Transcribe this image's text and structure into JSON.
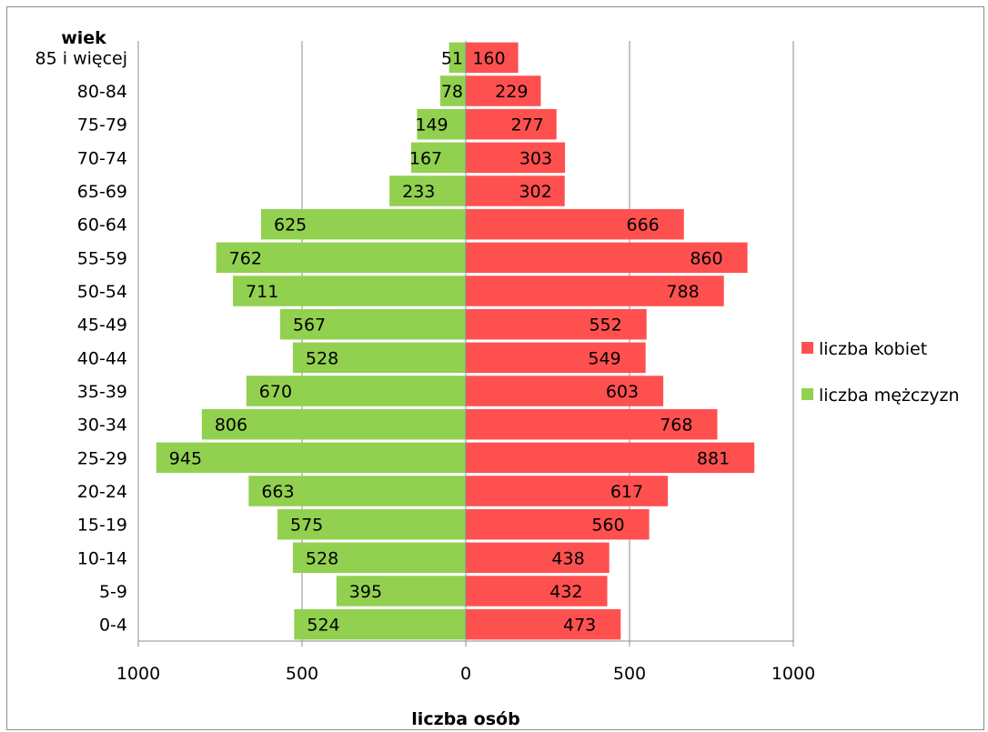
{
  "chart_data": {
    "type": "bar",
    "orientation": "horizontal",
    "subtype": "population-pyramid",
    "title": "",
    "ylabel": "wiek",
    "xlabel": "liczba osób",
    "categories": [
      "0-4",
      "5-9",
      "10-14",
      "15-19",
      "20-24",
      "25-29",
      "30-34",
      "35-39",
      "40-44",
      "45-49",
      "50-54",
      "55-59",
      "60-64",
      "65-69",
      "70-74",
      "75-79",
      "80-84",
      "85 i więcej"
    ],
    "series": [
      {
        "name": "liczba kobiet",
        "color": "#ff5050",
        "side": "right",
        "values": [
          473,
          432,
          438,
          560,
          617,
          881,
          768,
          603,
          549,
          552,
          788,
          860,
          666,
          302,
          303,
          277,
          229,
          160
        ]
      },
      {
        "name": "liczba mężczyzn",
        "color": "#92d050",
        "side": "left",
        "values": [
          524,
          395,
          528,
          575,
          663,
          945,
          806,
          670,
          528,
          567,
          711,
          762,
          625,
          233,
          167,
          149,
          78,
          51
        ]
      }
    ],
    "xlim": [
      -1000,
      1000
    ],
    "xticks": [
      -1000,
      -500,
      0,
      500,
      1000
    ],
    "xtick_labels": [
      "1000",
      "500",
      "0",
      "500",
      "1000"
    ],
    "grid": "vertical",
    "legend_position": "right"
  }
}
